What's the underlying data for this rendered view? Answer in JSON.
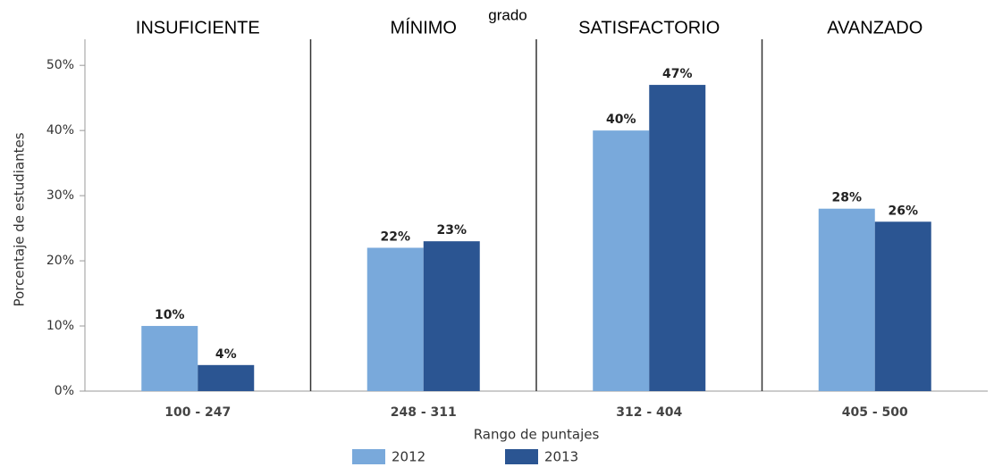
{
  "chart_data": {
    "type": "bar",
    "subtitle": "grado",
    "group_labels": [
      "INSUFICIENTE",
      "MÍNIMO",
      "SATISFACTORIO",
      "AVANZADO"
    ],
    "categories": [
      "100 - 247",
      "248 - 311",
      "312 - 404",
      "405 - 500"
    ],
    "x_label": "Rango de puntajes",
    "y_label": "Porcentaje de estudiantes",
    "series": [
      {
        "name": "2012",
        "color": "#79a9db",
        "values": [
          10,
          22,
          40,
          28
        ],
        "value_labels": [
          "10%",
          "22%",
          "40%",
          "28%"
        ]
      },
      {
        "name": "2013",
        "color": "#2b5592",
        "values": [
          4,
          23,
          47,
          26
        ],
        "value_labels": [
          "4%",
          "23%",
          "47%",
          "26%"
        ]
      }
    ],
    "ylim": [
      0,
      54
    ],
    "yticks": [
      {
        "value": 0,
        "label": "0%"
      },
      {
        "value": 10,
        "label": "10%"
      },
      {
        "value": 20,
        "label": "20%"
      },
      {
        "value": 30,
        "label": "30%"
      },
      {
        "value": 40,
        "label": "40%"
      },
      {
        "value": 50,
        "label": "50%"
      }
    ],
    "grid": false
  }
}
